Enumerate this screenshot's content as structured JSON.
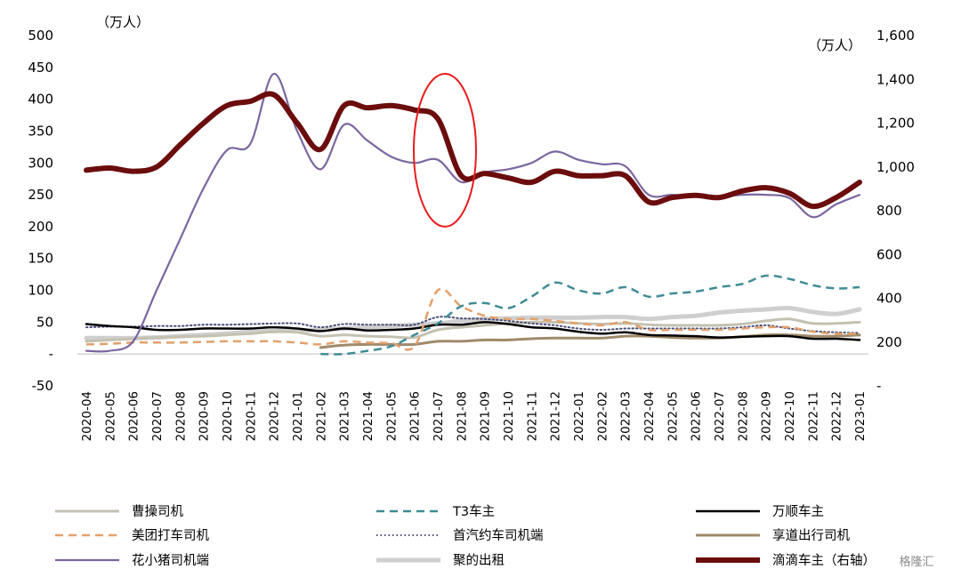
{
  "chart_data": {
    "type": "line",
    "left_unit": "（万人）",
    "right_unit": "（万人）",
    "y_left": {
      "ticks": [
        -50,
        0,
        50,
        100,
        150,
        200,
        250,
        300,
        350,
        400,
        450,
        500
      ],
      "tick_labels": [
        "-50",
        "-",
        "50",
        "100",
        "150",
        "200",
        "250",
        "300",
        "350",
        "400",
        "450",
        "500"
      ],
      "lim": [
        -50,
        500
      ]
    },
    "y_right": {
      "ticks": [
        0,
        200,
        400,
        600,
        800,
        1000,
        1200,
        1400,
        1600
      ],
      "tick_labels": [
        "-",
        "200",
        "400",
        "600",
        "800",
        "1,000",
        "1,200",
        "1,400",
        "1,600"
      ],
      "lim": [
        0,
        1600
      ]
    },
    "categories": [
      "2020-04",
      "2020-05",
      "2020-06",
      "2020-07",
      "2020-08",
      "2020-09",
      "2020-10",
      "2020-11",
      "2020-12",
      "2021-01",
      "2021-02",
      "2021-03",
      "2021-04",
      "2021-05",
      "2021-06",
      "2021-07",
      "2021-08",
      "2021-09",
      "2021-10",
      "2021-11",
      "2021-12",
      "2022-01",
      "2022-02",
      "2022-03",
      "2022-04",
      "2022-05",
      "2022-06",
      "2022-07",
      "2022-08",
      "2022-09",
      "2022-10",
      "2022-11",
      "2022-12",
      "2023-01"
    ],
    "series": [
      {
        "name": "曹操司机",
        "axis": "left",
        "color": "#c4c1b0",
        "style": "solid",
        "width": 3,
        "values": [
          20,
          22,
          24,
          26,
          27,
          28,
          30,
          32,
          35,
          34,
          28,
          30,
          28,
          27,
          26,
          38,
          42,
          45,
          48,
          50,
          50,
          48,
          47,
          48,
          46,
          45,
          45,
          45,
          47,
          52,
          55,
          48,
          48,
          50
        ]
      },
      {
        "name": "T3车主",
        "axis": "left",
        "color": "#3f8c96",
        "style": "dash",
        "width": 2.5,
        "values": [
          null,
          null,
          null,
          null,
          null,
          null,
          null,
          null,
          null,
          null,
          0,
          0,
          5,
          12,
          30,
          48,
          75,
          80,
          72,
          90,
          112,
          100,
          95,
          105,
          90,
          95,
          98,
          105,
          110,
          123,
          118,
          108,
          103,
          105
        ]
      },
      {
        "name": "万顺车主",
        "axis": "left",
        "color": "#000000",
        "style": "solid",
        "width": 2.5,
        "values": [
          47,
          44,
          42,
          38,
          38,
          40,
          40,
          40,
          42,
          40,
          36,
          40,
          37,
          38,
          40,
          46,
          46,
          50,
          47,
          42,
          40,
          35,
          32,
          34,
          30,
          29,
          28,
          26,
          27,
          28,
          28,
          24,
          24,
          22
        ]
      },
      {
        "name": "美团打车司机",
        "axis": "left",
        "color": "#e3a06b",
        "style": "dash",
        "width": 2.5,
        "values": [
          15,
          16,
          18,
          18,
          18,
          19,
          20,
          20,
          20,
          18,
          15,
          20,
          18,
          17,
          12,
          100,
          75,
          60,
          55,
          55,
          52,
          48,
          45,
          50,
          38,
          38,
          38,
          38,
          40,
          42,
          42,
          35,
          32,
          32
        ]
      },
      {
        "name": "首汽约车司机端",
        "axis": "left",
        "color": "#4a4e78",
        "style": "dot",
        "width": 2,
        "values": [
          42,
          43,
          43,
          44,
          44,
          46,
          46,
          47,
          48,
          48,
          42,
          47,
          46,
          46,
          46,
          58,
          56,
          55,
          52,
          48,
          45,
          40,
          38,
          40,
          40,
          40,
          40,
          40,
          42,
          45,
          40,
          36,
          34,
          33
        ]
      },
      {
        "name": "享道出行司机",
        "axis": "left",
        "color": "#a08a6a",
        "style": "solid",
        "width": 3,
        "values": [
          null,
          null,
          null,
          null,
          null,
          null,
          null,
          null,
          null,
          null,
          10,
          14,
          15,
          15,
          15,
          20,
          20,
          22,
          22,
          24,
          25,
          25,
          25,
          28,
          28,
          26,
          25,
          25,
          27,
          30,
          30,
          28,
          28,
          30
        ]
      },
      {
        "name": "花小猪司机端",
        "axis": "left",
        "color": "#7b66a0",
        "style": "solid",
        "width": 2.2,
        "values": [
          5,
          5,
          20,
          100,
          180,
          260,
          320,
          330,
          440,
          350,
          290,
          360,
          335,
          310,
          300,
          305,
          270,
          285,
          290,
          300,
          318,
          305,
          298,
          295,
          250,
          250,
          248,
          247,
          250,
          250,
          245,
          215,
          235,
          250
        ]
      },
      {
        "name": "聚的出租",
        "axis": "left",
        "color": "#cfcfcf",
        "style": "solid",
        "width": 5,
        "values": [
          25,
          25,
          25,
          26,
          28,
          30,
          32,
          35,
          36,
          37,
          38,
          40,
          42,
          44,
          46,
          48,
          52,
          55,
          56,
          57,
          57,
          57,
          58,
          58,
          55,
          58,
          60,
          65,
          68,
          70,
          72,
          66,
          63,
          70
        ]
      },
      {
        "name": "滴滴车主（右轴）",
        "axis": "right",
        "color": "#6b0d0d",
        "style": "solid",
        "width": 6,
        "values": [
          985,
          995,
          980,
          1000,
          1100,
          1200,
          1280,
          1300,
          1330,
          1200,
          1080,
          1280,
          1270,
          1280,
          1260,
          1220,
          960,
          970,
          950,
          930,
          980,
          960,
          960,
          960,
          840,
          860,
          870,
          860,
          890,
          905,
          880,
          820,
          860,
          930
        ]
      }
    ],
    "annotation": {
      "shape": "ellipse",
      "color": "#e81c1c",
      "center_category": "2021-07",
      "y_left_range": [
        200,
        440
      ]
    },
    "legend": {
      "placement": "bottom",
      "columns": 3
    },
    "watermark": "格隆汇"
  }
}
